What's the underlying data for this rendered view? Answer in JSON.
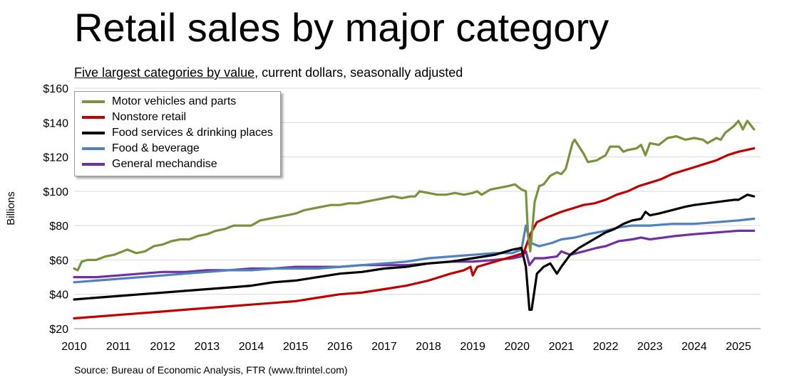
{
  "title": "Retail sales by major category",
  "subtitle_underlined": "Five largest categories by value",
  "subtitle_rest": ", current dollars, seasonally adjusted",
  "source": "Source: Bureau of Economic Analysis, FTR (www.ftrintel.com)",
  "chart_data": {
    "type": "line",
    "ylabel": "Billions",
    "ylim": [
      20,
      160
    ],
    "yticks": [
      20,
      40,
      60,
      80,
      100,
      120,
      140,
      160
    ],
    "ytick_labels": [
      "$20",
      "$40",
      "$60",
      "$80",
      "$100",
      "$120",
      "$140",
      "$160"
    ],
    "xlim": [
      2010,
      2025.5
    ],
    "xticks": [
      2010,
      2011,
      2012,
      2013,
      2014,
      2015,
      2016,
      2017,
      2018,
      2019,
      2020,
      2021,
      2022,
      2023,
      2024,
      2025
    ],
    "grid": "horizontal",
    "legend_position": "top-left",
    "series": [
      {
        "name": "Motor vehicles and parts",
        "color": "#77933c",
        "points": [
          [
            2010.0,
            55
          ],
          [
            2010.08,
            54
          ],
          [
            2010.17,
            59
          ],
          [
            2010.3,
            60
          ],
          [
            2010.5,
            60
          ],
          [
            2010.7,
            62
          ],
          [
            2010.9,
            63
          ],
          [
            2011.0,
            64
          ],
          [
            2011.2,
            66
          ],
          [
            2011.4,
            64
          ],
          [
            2011.6,
            65
          ],
          [
            2011.8,
            68
          ],
          [
            2012.0,
            69
          ],
          [
            2012.2,
            71
          ],
          [
            2012.4,
            72
          ],
          [
            2012.6,
            72
          ],
          [
            2012.8,
            74
          ],
          [
            2013.0,
            75
          ],
          [
            2013.2,
            77
          ],
          [
            2013.4,
            78
          ],
          [
            2013.6,
            80
          ],
          [
            2013.8,
            80
          ],
          [
            2014.0,
            80
          ],
          [
            2014.2,
            83
          ],
          [
            2014.4,
            84
          ],
          [
            2014.6,
            85
          ],
          [
            2014.8,
            86
          ],
          [
            2015.0,
            87
          ],
          [
            2015.2,
            89
          ],
          [
            2015.4,
            90
          ],
          [
            2015.6,
            91
          ],
          [
            2015.8,
            92
          ],
          [
            2016.0,
            92
          ],
          [
            2016.2,
            93
          ],
          [
            2016.4,
            93
          ],
          [
            2016.6,
            94
          ],
          [
            2016.8,
            95
          ],
          [
            2017.0,
            96
          ],
          [
            2017.2,
            97
          ],
          [
            2017.4,
            96
          ],
          [
            2017.6,
            97
          ],
          [
            2017.7,
            97
          ],
          [
            2017.8,
            100
          ],
          [
            2018.0,
            99
          ],
          [
            2018.2,
            98
          ],
          [
            2018.4,
            98
          ],
          [
            2018.6,
            99
          ],
          [
            2018.8,
            98
          ],
          [
            2019.0,
            99
          ],
          [
            2019.1,
            100
          ],
          [
            2019.2,
            98
          ],
          [
            2019.4,
            101
          ],
          [
            2019.6,
            102
          ],
          [
            2019.8,
            103
          ],
          [
            2019.95,
            104
          ],
          [
            2020.1,
            101
          ],
          [
            2020.2,
            100
          ],
          [
            2020.25,
            74
          ],
          [
            2020.3,
            65
          ],
          [
            2020.4,
            94
          ],
          [
            2020.5,
            103
          ],
          [
            2020.6,
            104
          ],
          [
            2020.75,
            109
          ],
          [
            2020.9,
            111
          ],
          [
            2021.0,
            110
          ],
          [
            2021.1,
            113
          ],
          [
            2021.25,
            128
          ],
          [
            2021.3,
            130
          ],
          [
            2021.5,
            122
          ],
          [
            2021.6,
            117
          ],
          [
            2021.8,
            118
          ],
          [
            2022.0,
            121
          ],
          [
            2022.1,
            126
          ],
          [
            2022.3,
            126
          ],
          [
            2022.4,
            123
          ],
          [
            2022.5,
            124
          ],
          [
            2022.7,
            125
          ],
          [
            2022.8,
            127
          ],
          [
            2022.9,
            121
          ],
          [
            2023.0,
            128
          ],
          [
            2023.2,
            127
          ],
          [
            2023.4,
            131
          ],
          [
            2023.6,
            132
          ],
          [
            2023.8,
            130
          ],
          [
            2024.0,
            131
          ],
          [
            2024.2,
            130
          ],
          [
            2024.3,
            128
          ],
          [
            2024.5,
            131
          ],
          [
            2024.6,
            130
          ],
          [
            2024.7,
            134
          ],
          [
            2024.9,
            138
          ],
          [
            2025.0,
            141
          ],
          [
            2025.1,
            136
          ],
          [
            2025.2,
            141
          ],
          [
            2025.35,
            136
          ]
        ]
      },
      {
        "name": "Nonstore retail",
        "color": "#c00000",
        "points": [
          [
            2010.0,
            26
          ],
          [
            2010.5,
            27
          ],
          [
            2011.0,
            28
          ],
          [
            2011.5,
            29
          ],
          [
            2012.0,
            30
          ],
          [
            2012.5,
            31
          ],
          [
            2013.0,
            32
          ],
          [
            2013.5,
            33
          ],
          [
            2014.0,
            34
          ],
          [
            2014.5,
            35
          ],
          [
            2015.0,
            36
          ],
          [
            2015.5,
            38
          ],
          [
            2016.0,
            40
          ],
          [
            2016.5,
            41
          ],
          [
            2017.0,
            43
          ],
          [
            2017.5,
            45
          ],
          [
            2018.0,
            48
          ],
          [
            2018.5,
            52
          ],
          [
            2018.8,
            54
          ],
          [
            2018.95,
            56
          ],
          [
            2019.0,
            51
          ],
          [
            2019.1,
            56
          ],
          [
            2019.5,
            59
          ],
          [
            2019.9,
            62
          ],
          [
            2020.15,
            64
          ],
          [
            2020.3,
            75
          ],
          [
            2020.45,
            82
          ],
          [
            2020.7,
            85
          ],
          [
            2021.0,
            88
          ],
          [
            2021.25,
            90
          ],
          [
            2021.5,
            92
          ],
          [
            2021.75,
            93
          ],
          [
            2022.0,
            95
          ],
          [
            2022.25,
            98
          ],
          [
            2022.5,
            100
          ],
          [
            2022.75,
            103
          ],
          [
            2023.0,
            105
          ],
          [
            2023.25,
            107
          ],
          [
            2023.5,
            110
          ],
          [
            2023.75,
            112
          ],
          [
            2024.0,
            114
          ],
          [
            2024.25,
            116
          ],
          [
            2024.5,
            118
          ],
          [
            2024.75,
            121
          ],
          [
            2025.0,
            123
          ],
          [
            2025.35,
            125
          ]
        ]
      },
      {
        "name": "Food services & drinking places",
        "color": "#000000",
        "points": [
          [
            2010.0,
            37
          ],
          [
            2010.5,
            38
          ],
          [
            2011.0,
            39
          ],
          [
            2011.5,
            40
          ],
          [
            2012.0,
            41
          ],
          [
            2012.5,
            42
          ],
          [
            2013.0,
            43
          ],
          [
            2013.5,
            44
          ],
          [
            2014.0,
            45
          ],
          [
            2014.5,
            47
          ],
          [
            2015.0,
            48
          ],
          [
            2015.5,
            50
          ],
          [
            2016.0,
            52
          ],
          [
            2016.5,
            53
          ],
          [
            2017.0,
            55
          ],
          [
            2017.5,
            56
          ],
          [
            2018.0,
            58
          ],
          [
            2018.5,
            59
          ],
          [
            2019.0,
            61
          ],
          [
            2019.5,
            63
          ],
          [
            2019.9,
            66
          ],
          [
            2020.1,
            67
          ],
          [
            2020.2,
            56
          ],
          [
            2020.28,
            31
          ],
          [
            2020.33,
            31
          ],
          [
            2020.45,
            52
          ],
          [
            2020.6,
            56
          ],
          [
            2020.75,
            58
          ],
          [
            2020.9,
            52
          ],
          [
            2021.0,
            56
          ],
          [
            2021.2,
            63
          ],
          [
            2021.4,
            67
          ],
          [
            2021.6,
            70
          ],
          [
            2021.8,
            73
          ],
          [
            2022.0,
            76
          ],
          [
            2022.2,
            78
          ],
          [
            2022.4,
            81
          ],
          [
            2022.6,
            83
          ],
          [
            2022.8,
            84
          ],
          [
            2022.9,
            88
          ],
          [
            2023.0,
            86
          ],
          [
            2023.2,
            87
          ],
          [
            2023.5,
            89
          ],
          [
            2023.8,
            91
          ],
          [
            2024.0,
            92
          ],
          [
            2024.3,
            93
          ],
          [
            2024.6,
            94
          ],
          [
            2024.9,
            95
          ],
          [
            2025.0,
            95
          ],
          [
            2025.2,
            98
          ],
          [
            2025.35,
            97
          ]
        ]
      },
      {
        "name": "Food & beverage",
        "color": "#4f81bd",
        "points": [
          [
            2010.0,
            47
          ],
          [
            2010.5,
            48
          ],
          [
            2011.0,
            49
          ],
          [
            2011.5,
            50
          ],
          [
            2012.0,
            51
          ],
          [
            2012.5,
            52
          ],
          [
            2013.0,
            53
          ],
          [
            2013.5,
            54
          ],
          [
            2014.0,
            54
          ],
          [
            2014.5,
            55
          ],
          [
            2015.0,
            55
          ],
          [
            2015.5,
            55
          ],
          [
            2016.0,
            56
          ],
          [
            2016.5,
            57
          ],
          [
            2017.0,
            58
          ],
          [
            2017.5,
            59
          ],
          [
            2018.0,
            61
          ],
          [
            2018.5,
            62
          ],
          [
            2019.0,
            63
          ],
          [
            2019.5,
            64
          ],
          [
            2019.9,
            64
          ],
          [
            2020.1,
            66
          ],
          [
            2020.2,
            80
          ],
          [
            2020.3,
            70
          ],
          [
            2020.5,
            68
          ],
          [
            2020.8,
            70
          ],
          [
            2021.0,
            72
          ],
          [
            2021.3,
            73
          ],
          [
            2021.6,
            75
          ],
          [
            2022.0,
            77
          ],
          [
            2022.3,
            79
          ],
          [
            2022.6,
            80
          ],
          [
            2023.0,
            80
          ],
          [
            2023.5,
            81
          ],
          [
            2024.0,
            81
          ],
          [
            2024.5,
            82
          ],
          [
            2025.0,
            83
          ],
          [
            2025.35,
            84
          ]
        ]
      },
      {
        "name": "General mechandise",
        "color": "#7030a0",
        "points": [
          [
            2010.0,
            50
          ],
          [
            2010.5,
            50
          ],
          [
            2011.0,
            51
          ],
          [
            2011.5,
            52
          ],
          [
            2012.0,
            53
          ],
          [
            2012.5,
            53
          ],
          [
            2013.0,
            54
          ],
          [
            2013.5,
            54
          ],
          [
            2014.0,
            55
          ],
          [
            2014.5,
            55
          ],
          [
            2015.0,
            56
          ],
          [
            2015.5,
            56
          ],
          [
            2016.0,
            56
          ],
          [
            2016.5,
            57
          ],
          [
            2017.0,
            57
          ],
          [
            2017.5,
            57
          ],
          [
            2018.0,
            58
          ],
          [
            2018.5,
            59
          ],
          [
            2019.0,
            59
          ],
          [
            2019.5,
            60
          ],
          [
            2019.9,
            61
          ],
          [
            2020.1,
            62
          ],
          [
            2020.2,
            65
          ],
          [
            2020.28,
            57
          ],
          [
            2020.4,
            61
          ],
          [
            2020.6,
            61
          ],
          [
            2020.9,
            62
          ],
          [
            2021.0,
            65
          ],
          [
            2021.2,
            63
          ],
          [
            2021.5,
            65
          ],
          [
            2021.8,
            67
          ],
          [
            2022.0,
            68
          ],
          [
            2022.3,
            71
          ],
          [
            2022.6,
            72
          ],
          [
            2022.8,
            73
          ],
          [
            2023.0,
            72
          ],
          [
            2023.3,
            73
          ],
          [
            2023.6,
            74
          ],
          [
            2024.0,
            75
          ],
          [
            2024.5,
            76
          ],
          [
            2025.0,
            77
          ],
          [
            2025.35,
            77
          ]
        ]
      }
    ]
  }
}
